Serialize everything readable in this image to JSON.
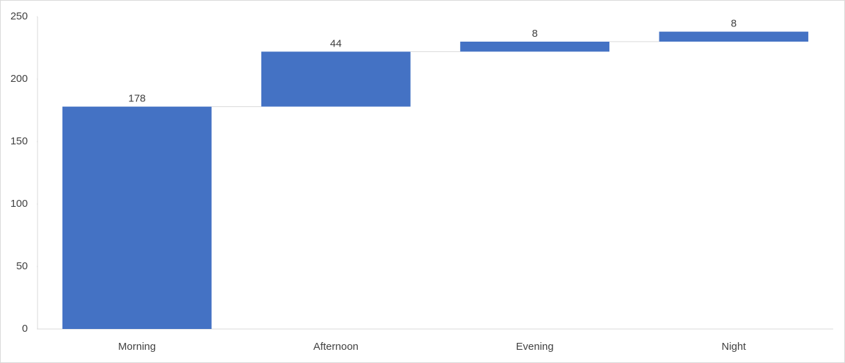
{
  "chart_data": {
    "type": "waterfall",
    "categories": [
      "Morning",
      "Afternoon",
      "Evening",
      "Night"
    ],
    "values": [
      178,
      44,
      8,
      8
    ],
    "color": "#4472c4",
    "ylim": [
      0,
      250
    ],
    "yticks": [
      0,
      50,
      100,
      150,
      200,
      250
    ],
    "grid": false
  }
}
